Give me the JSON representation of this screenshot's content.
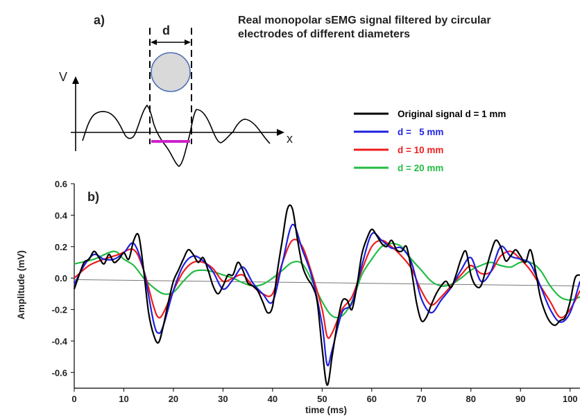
{
  "title": {
    "line1": "Real monopolar sEMG signal filtered by circular",
    "line2": "electrodes of different diameters"
  },
  "panel_a": {
    "label": "a)",
    "d_label": "d",
    "v_label": "V",
    "x_label": "x"
  },
  "panel_b": {
    "label": "b)"
  },
  "colors": {
    "d1": "#000000",
    "d5": "#1f1fe0",
    "d10": "#ee1c1c",
    "d20": "#22bb44",
    "electrode_fill": "#d9d9d9",
    "electrode_stroke": "#4a6fb5",
    "magenta": "#cc22cc"
  },
  "chart_data": {
    "type": "line",
    "xlabel": "time (ms)",
    "ylabel": "Amplitude (mV)",
    "xlim": [
      0,
      102
    ],
    "ylim": [
      -0.7,
      0.6
    ],
    "xticks": [
      0,
      10,
      20,
      30,
      40,
      50,
      60,
      70,
      80,
      90,
      100
    ],
    "yticks": [
      0.6,
      0.4,
      0.2,
      0.0,
      -0.2,
      -0.4,
      -0.6
    ],
    "ytick_labels": [
      "0.6",
      "0.4",
      "0.2",
      "0.0",
      "-0.2",
      "-0.4",
      "-0.6"
    ],
    "legend_position": "top-right",
    "baseline": {
      "x": [
        0,
        102
      ],
      "y": [
        -0.01,
        -0.05
      ]
    },
    "series": [
      {
        "name": "Original signal d = 1 mm",
        "color": "#000000",
        "x": [
          0,
          1,
          2,
          3,
          4,
          5,
          6,
          7,
          8,
          9,
          10,
          11,
          12,
          13,
          14,
          15,
          16,
          17,
          18,
          19,
          20,
          21,
          22,
          23,
          24,
          25,
          26,
          27,
          28,
          29,
          30,
          31,
          32,
          33,
          34,
          35,
          36,
          37,
          38,
          39,
          40,
          41,
          42,
          43,
          44,
          45,
          46,
          47,
          48,
          49,
          50,
          51,
          52,
          53,
          54,
          55,
          56,
          57,
          58,
          59,
          60,
          61,
          62,
          63,
          64,
          65,
          66,
          67,
          68,
          69,
          70,
          71,
          72,
          73,
          74,
          75,
          76,
          77,
          78,
          79,
          80,
          81,
          82,
          83,
          84,
          85,
          86,
          87,
          88,
          89,
          90,
          91,
          92,
          93,
          94,
          95,
          96,
          97,
          98,
          99,
          100,
          101,
          102
        ],
        "y": [
          -0.07,
          0.02,
          0.1,
          0.12,
          0.17,
          0.13,
          0.09,
          0.15,
          0.1,
          0.12,
          0.16,
          0.12,
          0.24,
          0.27,
          0.05,
          -0.22,
          -0.36,
          -0.41,
          -0.3,
          -0.15,
          -0.02,
          0.05,
          0.12,
          0.18,
          0.15,
          0.1,
          0.13,
          0.05,
          -0.05,
          -0.1,
          -0.05,
          0.02,
          0.02,
          0.1,
          0.05,
          -0.03,
          -0.05,
          -0.08,
          -0.15,
          -0.22,
          -0.18,
          0.05,
          0.25,
          0.44,
          0.44,
          0.25,
          0.08,
          0.0,
          -0.05,
          -0.15,
          -0.45,
          -0.68,
          -0.5,
          -0.3,
          -0.15,
          -0.14,
          -0.2,
          -0.05,
          0.15,
          0.25,
          0.31,
          0.27,
          0.22,
          0.2,
          0.24,
          0.18,
          0.17,
          0.2,
          0.05,
          -0.15,
          -0.27,
          -0.25,
          -0.17,
          -0.1,
          -0.05,
          -0.02,
          -0.06,
          0.02,
          0.12,
          0.17,
          0.02,
          -0.05,
          -0.05,
          0.05,
          0.16,
          0.24,
          0.2,
          0.11,
          0.14,
          0.18,
          0.14,
          0.1,
          0.18,
          0.05,
          -0.12,
          -0.22,
          -0.28,
          -0.3,
          -0.27,
          -0.25,
          -0.15,
          0.0,
          0.02
        ]
      },
      {
        "name": "d =   5 mm",
        "color": "#1f1fe0",
        "x": [
          0,
          2,
          4,
          6,
          8,
          10,
          12,
          14,
          16,
          17,
          18,
          20,
          22,
          24,
          26,
          28,
          30,
          32,
          34,
          36,
          38,
          40,
          42,
          44,
          46,
          48,
          50,
          51,
          52,
          54,
          56,
          58,
          60,
          62,
          64,
          66,
          68,
          70,
          72,
          74,
          76,
          78,
          80,
          82,
          84,
          86,
          88,
          90,
          92,
          94,
          96,
          98,
          100,
          102
        ],
        "y": [
          -0.04,
          0.08,
          0.15,
          0.12,
          0.12,
          0.16,
          0.22,
          0.05,
          -0.28,
          -0.35,
          -0.3,
          -0.08,
          0.08,
          0.14,
          0.11,
          0.04,
          -0.07,
          -0.01,
          0.07,
          -0.03,
          -0.1,
          -0.15,
          0.1,
          0.34,
          0.18,
          0.0,
          -0.3,
          -0.55,
          -0.46,
          -0.22,
          -0.16,
          0.08,
          0.28,
          0.24,
          0.19,
          0.19,
          0.1,
          -0.13,
          -0.22,
          -0.14,
          -0.06,
          0.05,
          0.13,
          -0.02,
          0.04,
          0.2,
          0.14,
          0.12,
          0.09,
          -0.05,
          -0.2,
          -0.28,
          -0.22,
          -0.02
        ]
      },
      {
        "name": "d = 10 mm",
        "color": "#ee1c1c",
        "x": [
          0,
          3,
          6,
          9,
          12,
          14,
          16,
          17,
          18,
          20,
          22,
          24,
          26,
          28,
          30,
          32,
          34,
          36,
          38,
          40,
          42,
          44,
          46,
          48,
          50,
          51,
          52,
          54,
          56,
          58,
          60,
          62,
          64,
          66,
          68,
          70,
          72,
          74,
          76,
          78,
          80,
          82,
          84,
          86,
          88,
          90,
          92,
          94,
          96,
          98,
          100,
          102
        ],
        "y": [
          0.0,
          0.08,
          0.12,
          0.15,
          0.18,
          0.05,
          -0.18,
          -0.25,
          -0.22,
          -0.08,
          0.04,
          0.1,
          0.1,
          0.06,
          -0.02,
          0.0,
          0.02,
          -0.05,
          -0.1,
          -0.1,
          0.1,
          0.24,
          0.2,
          0.02,
          -0.2,
          -0.37,
          -0.35,
          -0.2,
          -0.12,
          0.05,
          0.2,
          0.24,
          0.2,
          0.14,
          0.06,
          -0.08,
          -0.17,
          -0.12,
          -0.05,
          0.02,
          0.08,
          0.03,
          0.04,
          0.14,
          0.17,
          0.12,
          0.05,
          -0.05,
          -0.15,
          -0.25,
          -0.2,
          -0.08
        ]
      },
      {
        "name": "d = 20 mm",
        "color": "#22bb44",
        "x": [
          0,
          4,
          8,
          10,
          12,
          14,
          16,
          18,
          20,
          22,
          24,
          26,
          28,
          30,
          32,
          34,
          36,
          38,
          40,
          42,
          44,
          46,
          48,
          50,
          52,
          54,
          56,
          58,
          60,
          62,
          64,
          66,
          68,
          70,
          72,
          74,
          76,
          78,
          80,
          82,
          84,
          86,
          88,
          90,
          92,
          94,
          96,
          98,
          100,
          102
        ],
        "y": [
          0.09,
          0.12,
          0.17,
          0.12,
          0.08,
          0.0,
          -0.06,
          -0.1,
          -0.09,
          -0.02,
          0.04,
          0.05,
          0.04,
          0.02,
          0.0,
          -0.03,
          -0.05,
          -0.04,
          0.0,
          0.05,
          0.1,
          0.09,
          -0.02,
          -0.15,
          -0.24,
          -0.24,
          -0.15,
          0.02,
          0.12,
          0.2,
          0.22,
          0.2,
          0.12,
          0.05,
          -0.02,
          -0.05,
          -0.04,
          0.0,
          0.05,
          0.08,
          0.1,
          0.08,
          0.07,
          0.1,
          0.1,
          0.05,
          -0.05,
          -0.12,
          -0.14,
          -0.12
        ]
      }
    ]
  }
}
